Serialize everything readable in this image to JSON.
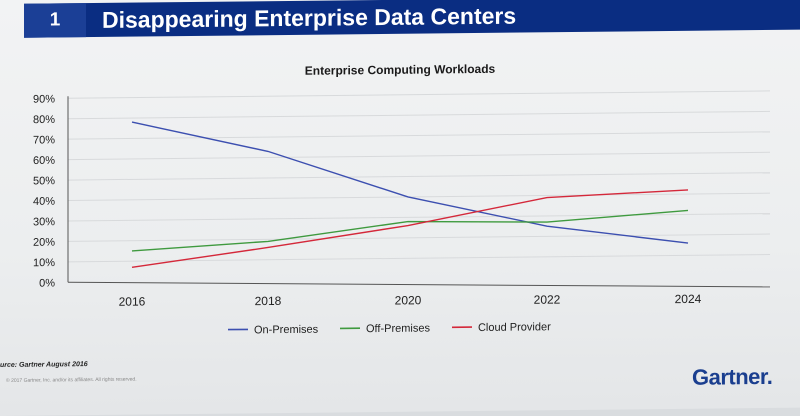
{
  "slide": {
    "number": "1",
    "title": "Disappearing Enterprise Data Centers",
    "source": "urce: Gartner August 2016",
    "copyright": "© 2017 Gartner, Inc. and/or its affiliates. All rights reserved.",
    "logo": "Gartner."
  },
  "colors": {
    "header_bg": "#0a2d82",
    "on_premises": "#3c4fb0",
    "off_premises": "#3f9a3f",
    "cloud_provider": "#d4283a"
  },
  "chart_data": {
    "type": "line",
    "title": "Enterprise Computing Workloads",
    "xlabel": "",
    "ylabel": "",
    "x": [
      "2016",
      "2018",
      "2020",
      "2022",
      "2024"
    ],
    "ylim": [
      0,
      90
    ],
    "y_ticks": [
      "0%",
      "10%",
      "20%",
      "30%",
      "40%",
      "50%",
      "60%",
      "70%",
      "80%",
      "90%"
    ],
    "grid": true,
    "legend_position": "bottom",
    "series": [
      {
        "name": "On-Premises",
        "color": "#3c4fb0",
        "values": [
          78,
          63,
          40,
          25,
          16
        ]
      },
      {
        "name": "Off-Premises",
        "color": "#3f9a3f",
        "values": [
          15,
          19,
          28,
          27,
          32
        ]
      },
      {
        "name": "Cloud Provider",
        "color": "#d4283a",
        "values": [
          7,
          16,
          26,
          39,
          42
        ]
      }
    ]
  }
}
